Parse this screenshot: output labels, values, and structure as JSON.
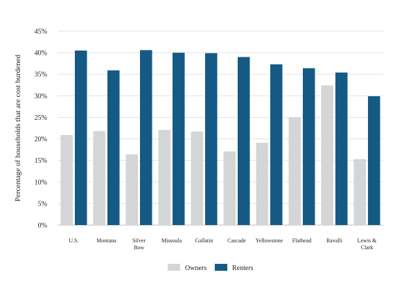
{
  "chart_data": {
    "type": "bar",
    "title": "",
    "xlabel": "",
    "ylabel": "Percentage of households that are cost burdened",
    "ylim": [
      0,
      45
    ],
    "yticks": [
      "0%",
      "5%",
      "10%",
      "15%",
      "20%",
      "25%",
      "30%",
      "35%",
      "40%",
      "45%"
    ],
    "ytick_values": [
      0,
      5,
      10,
      15,
      20,
      25,
      30,
      35,
      40,
      45
    ],
    "grid": true,
    "legend_position": "bottom",
    "categories": [
      "U.S.",
      "Montana",
      "Silver Bow",
      "Missoula",
      "Gallatin",
      "Cascade",
      "Yellowstone",
      "Flathead",
      "Ravalli",
      "Lewis & Clark"
    ],
    "category_lines": [
      [
        "U.S."
      ],
      [
        "Montana"
      ],
      [
        "Silver",
        "Bow"
      ],
      [
        "Missoula"
      ],
      [
        "Gallatin"
      ],
      [
        "Cascade"
      ],
      [
        "Yellowstone"
      ],
      [
        "Flathead"
      ],
      [
        "Ravalli"
      ],
      [
        "Lewis &",
        "Clark"
      ]
    ],
    "series": [
      {
        "name": "Owners",
        "color": "#d4d5d7",
        "values": [
          20.9,
          21.8,
          16.4,
          22.1,
          21.7,
          17.1,
          19.1,
          25.0,
          32.4,
          15.3
        ]
      },
      {
        "name": "Renters",
        "color": "#155a85",
        "values": [
          40.5,
          35.9,
          40.6,
          40.0,
          39.9,
          39.0,
          37.3,
          36.4,
          35.4,
          29.9
        ]
      }
    ]
  }
}
